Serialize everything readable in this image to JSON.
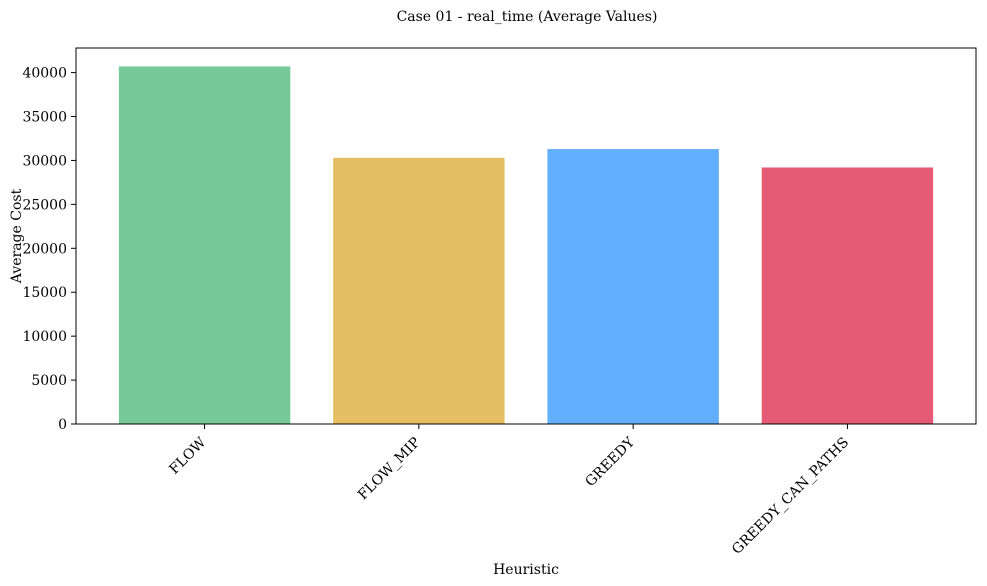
{
  "chart_data": {
    "type": "bar",
    "title": "Case 01 - real_time (Average Values)",
    "xlabel": "Heuristic",
    "ylabel": "Average Cost",
    "categories": [
      "FLOW",
      "FLOW_MIP",
      "GREEDY",
      "GREEDY_CAN_PATHS"
    ],
    "values": [
      40700,
      30300,
      31300,
      29200
    ],
    "colors": [
      "#78c99a",
      "#e6bf63",
      "#62b0fd",
      "#e55b75"
    ],
    "ylim": [
      0,
      42800
    ],
    "yticks": [
      0,
      5000,
      10000,
      15000,
      20000,
      25000,
      30000,
      35000,
      40000
    ],
    "grid": false,
    "legend": "none"
  }
}
